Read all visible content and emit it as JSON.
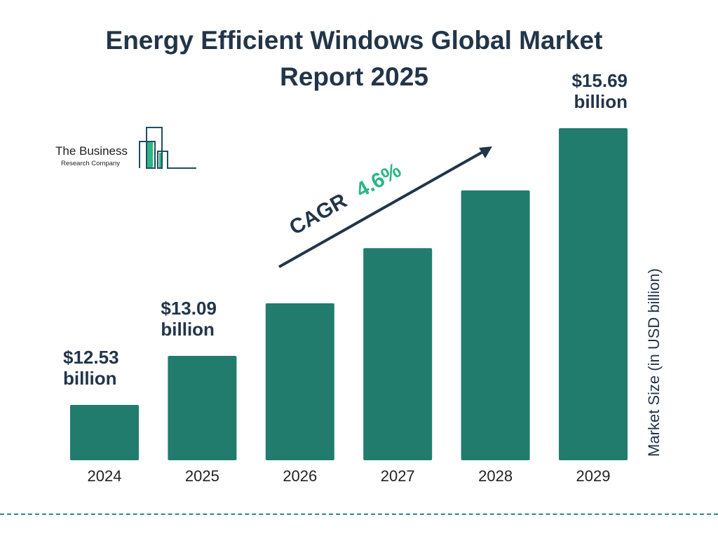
{
  "logo": {
    "line1": "The Business",
    "line2": "Research Company"
  },
  "colors": {
    "bar": "#217c6d",
    "text": "#223549",
    "accent": "#2bb784",
    "divider": "#2a8a84"
  },
  "chart_data": {
    "type": "bar",
    "title": "Energy Efficient Windows Global Market Report 2025",
    "categories": [
      "2024",
      "2025",
      "2026",
      "2027",
      "2028",
      "2029"
    ],
    "values": [
      12.53,
      13.09,
      13.69,
      14.32,
      14.98,
      15.69
    ],
    "data_labels": [
      {
        "index": 0,
        "line1": "$12.53",
        "line2": "billion"
      },
      {
        "index": 1,
        "line1": "$13.09",
        "line2": "billion"
      },
      {
        "index": 5,
        "line1": "$15.69",
        "line2": "billion"
      }
    ],
    "xlabel": "",
    "ylabel": "Market Size (in USD billion)",
    "annotation": {
      "label": "CAGR",
      "value": "4.6%"
    },
    "grid": false,
    "legend": "none"
  }
}
